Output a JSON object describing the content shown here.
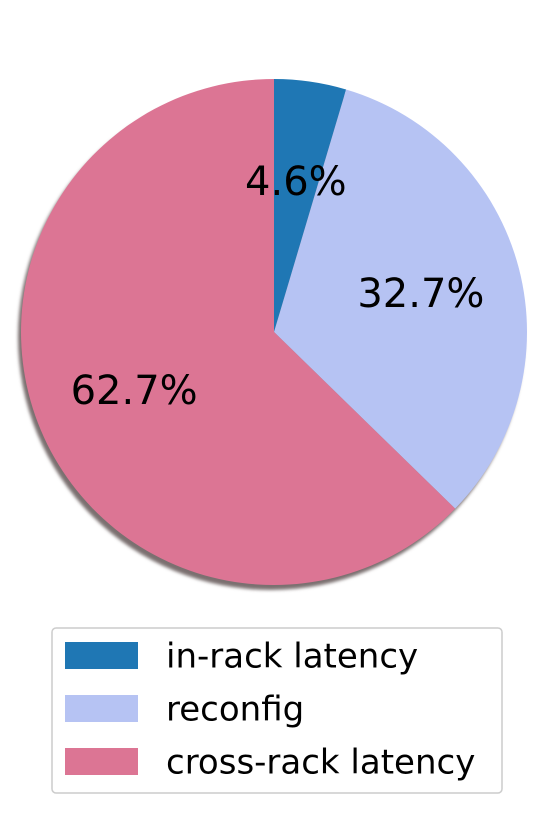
{
  "chart_data": {
    "type": "pie",
    "start_angle": 90,
    "direction": "clockwise",
    "shadow": true,
    "legend_placement": "bottom-center",
    "slices": [
      {
        "label": "in-rack latency",
        "value": 4.6,
        "display": "4.6%",
        "color": "#1f77b4"
      },
      {
        "label": "reconfig",
        "value": 32.7,
        "display": "32.7%",
        "color": "#b6c3f3"
      },
      {
        "label": "cross-rack latency",
        "value": 62.7,
        "display": "62.7%",
        "color": "#dc7594"
      }
    ]
  }
}
